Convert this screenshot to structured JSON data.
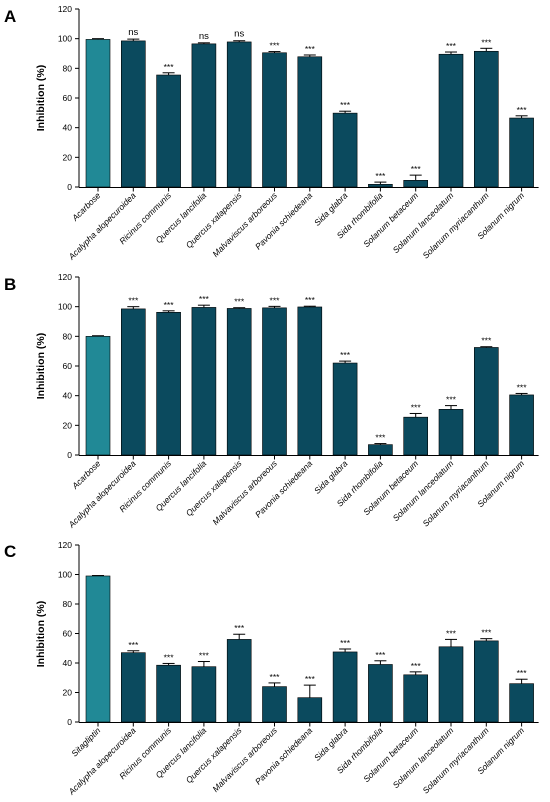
{
  "colors": {
    "control_bar": "#218996",
    "sample_bar": "#0b4a5e",
    "axis": "#000000"
  },
  "chart_data": [
    {
      "type": "bar",
      "panel": "A",
      "ylabel": "Inhibition (%)",
      "ylim": [
        0,
        120
      ],
      "yticks": [
        "0",
        "20",
        "40",
        "60",
        "80",
        "100",
        "120"
      ],
      "grid": false,
      "categories": [
        "Acarbose",
        "Acalypha alopecuroidea",
        "Ricinus communis",
        "Quercus lancifolia",
        "Quercus xalapensis",
        "Malvaviscus arboreous",
        "Pavonia schiedeana",
        "Sida glabra",
        "Sida rhombifolia",
        "Solanum betaceum",
        "Solanum lanceolatum",
        "Solanum myriacanthum",
        "Solanum nigrum"
      ],
      "values": [
        99.5,
        98.5,
        75.5,
        96.5,
        97.8,
        90.5,
        87.8,
        49.8,
        1.8,
        4.5,
        89.5,
        91.5,
        46.5
      ],
      "errors": [
        0.5,
        1.2,
        1.5,
        0.7,
        0.8,
        0.8,
        1.2,
        1.3,
        1.5,
        3.5,
        1.5,
        2.0,
        1.5
      ],
      "significance": [
        "",
        "ns",
        "***",
        "ns",
        "ns",
        "***",
        "***",
        "***",
        "***",
        "***",
        "***",
        "***",
        "***"
      ]
    },
    {
      "type": "bar",
      "panel": "B",
      "ylabel": "Inhibition (%)",
      "ylim": [
        0,
        120
      ],
      "yticks": [
        "0",
        "20",
        "40",
        "60",
        "80",
        "100",
        "120"
      ],
      "grid": false,
      "categories": [
        "Acarbose",
        "Acalypha alopecuroidea",
        "Ricinus communis",
        "Quercus lancifolia",
        "Quercus xalapensis",
        "Malvaviscus arboreous",
        "Pavonia schiedeana",
        "Sida glabra",
        "Sida rhombifolia",
        "Solanum betaceum",
        "Solanum lanceolatum",
        "Solanum myriacanthum",
        "Solanum nigrum"
      ],
      "values": [
        80.0,
        98.5,
        96.2,
        99.5,
        98.8,
        99.2,
        99.8,
        62.0,
        7.0,
        25.5,
        30.8,
        72.5,
        40.5
      ],
      "errors": [
        0.4,
        1.5,
        1.0,
        1.5,
        0.5,
        1.0,
        0.5,
        1.3,
        0.7,
        2.5,
        2.5,
        0.5,
        1.0
      ],
      "significance": [
        "",
        "***",
        "***",
        "***",
        "***",
        "***",
        "***",
        "***",
        "***",
        "***",
        "***",
        "***",
        "***"
      ]
    },
    {
      "type": "bar",
      "panel": "C",
      "ylabel": "Inhibition (%)",
      "ylim": [
        0,
        120
      ],
      "yticks": [
        "0",
        "20",
        "40",
        "60",
        "80",
        "100",
        "120"
      ],
      "grid": false,
      "categories": [
        "Sitagliptin",
        "Acalypha alopecuroidea",
        "Ricinus communis",
        "Quercus lancifolia",
        "Quercus xalapensis",
        "Malvaviscus arboreous",
        "Pavonia schiedeana",
        "Sida glabra",
        "Sida rhombifolia",
        "Solanum betaceum",
        "Solanum lanceolatum",
        "Solanum myriacanthum",
        "Solanum nigrum"
      ],
      "values": [
        99.0,
        47.0,
        38.5,
        37.5,
        56.0,
        24.0,
        16.5,
        47.5,
        39.0,
        32.0,
        51.0,
        55.0,
        26.0
      ],
      "errors": [
        0.3,
        1.3,
        1.2,
        3.5,
        3.5,
        2.5,
        8.5,
        2.0,
        2.5,
        2.0,
        5.0,
        1.5,
        3.0
      ],
      "significance": [
        "",
        "***",
        "***",
        "***",
        "***",
        "***",
        "***",
        "***",
        "***",
        "***",
        "***",
        "***",
        "***"
      ]
    }
  ]
}
